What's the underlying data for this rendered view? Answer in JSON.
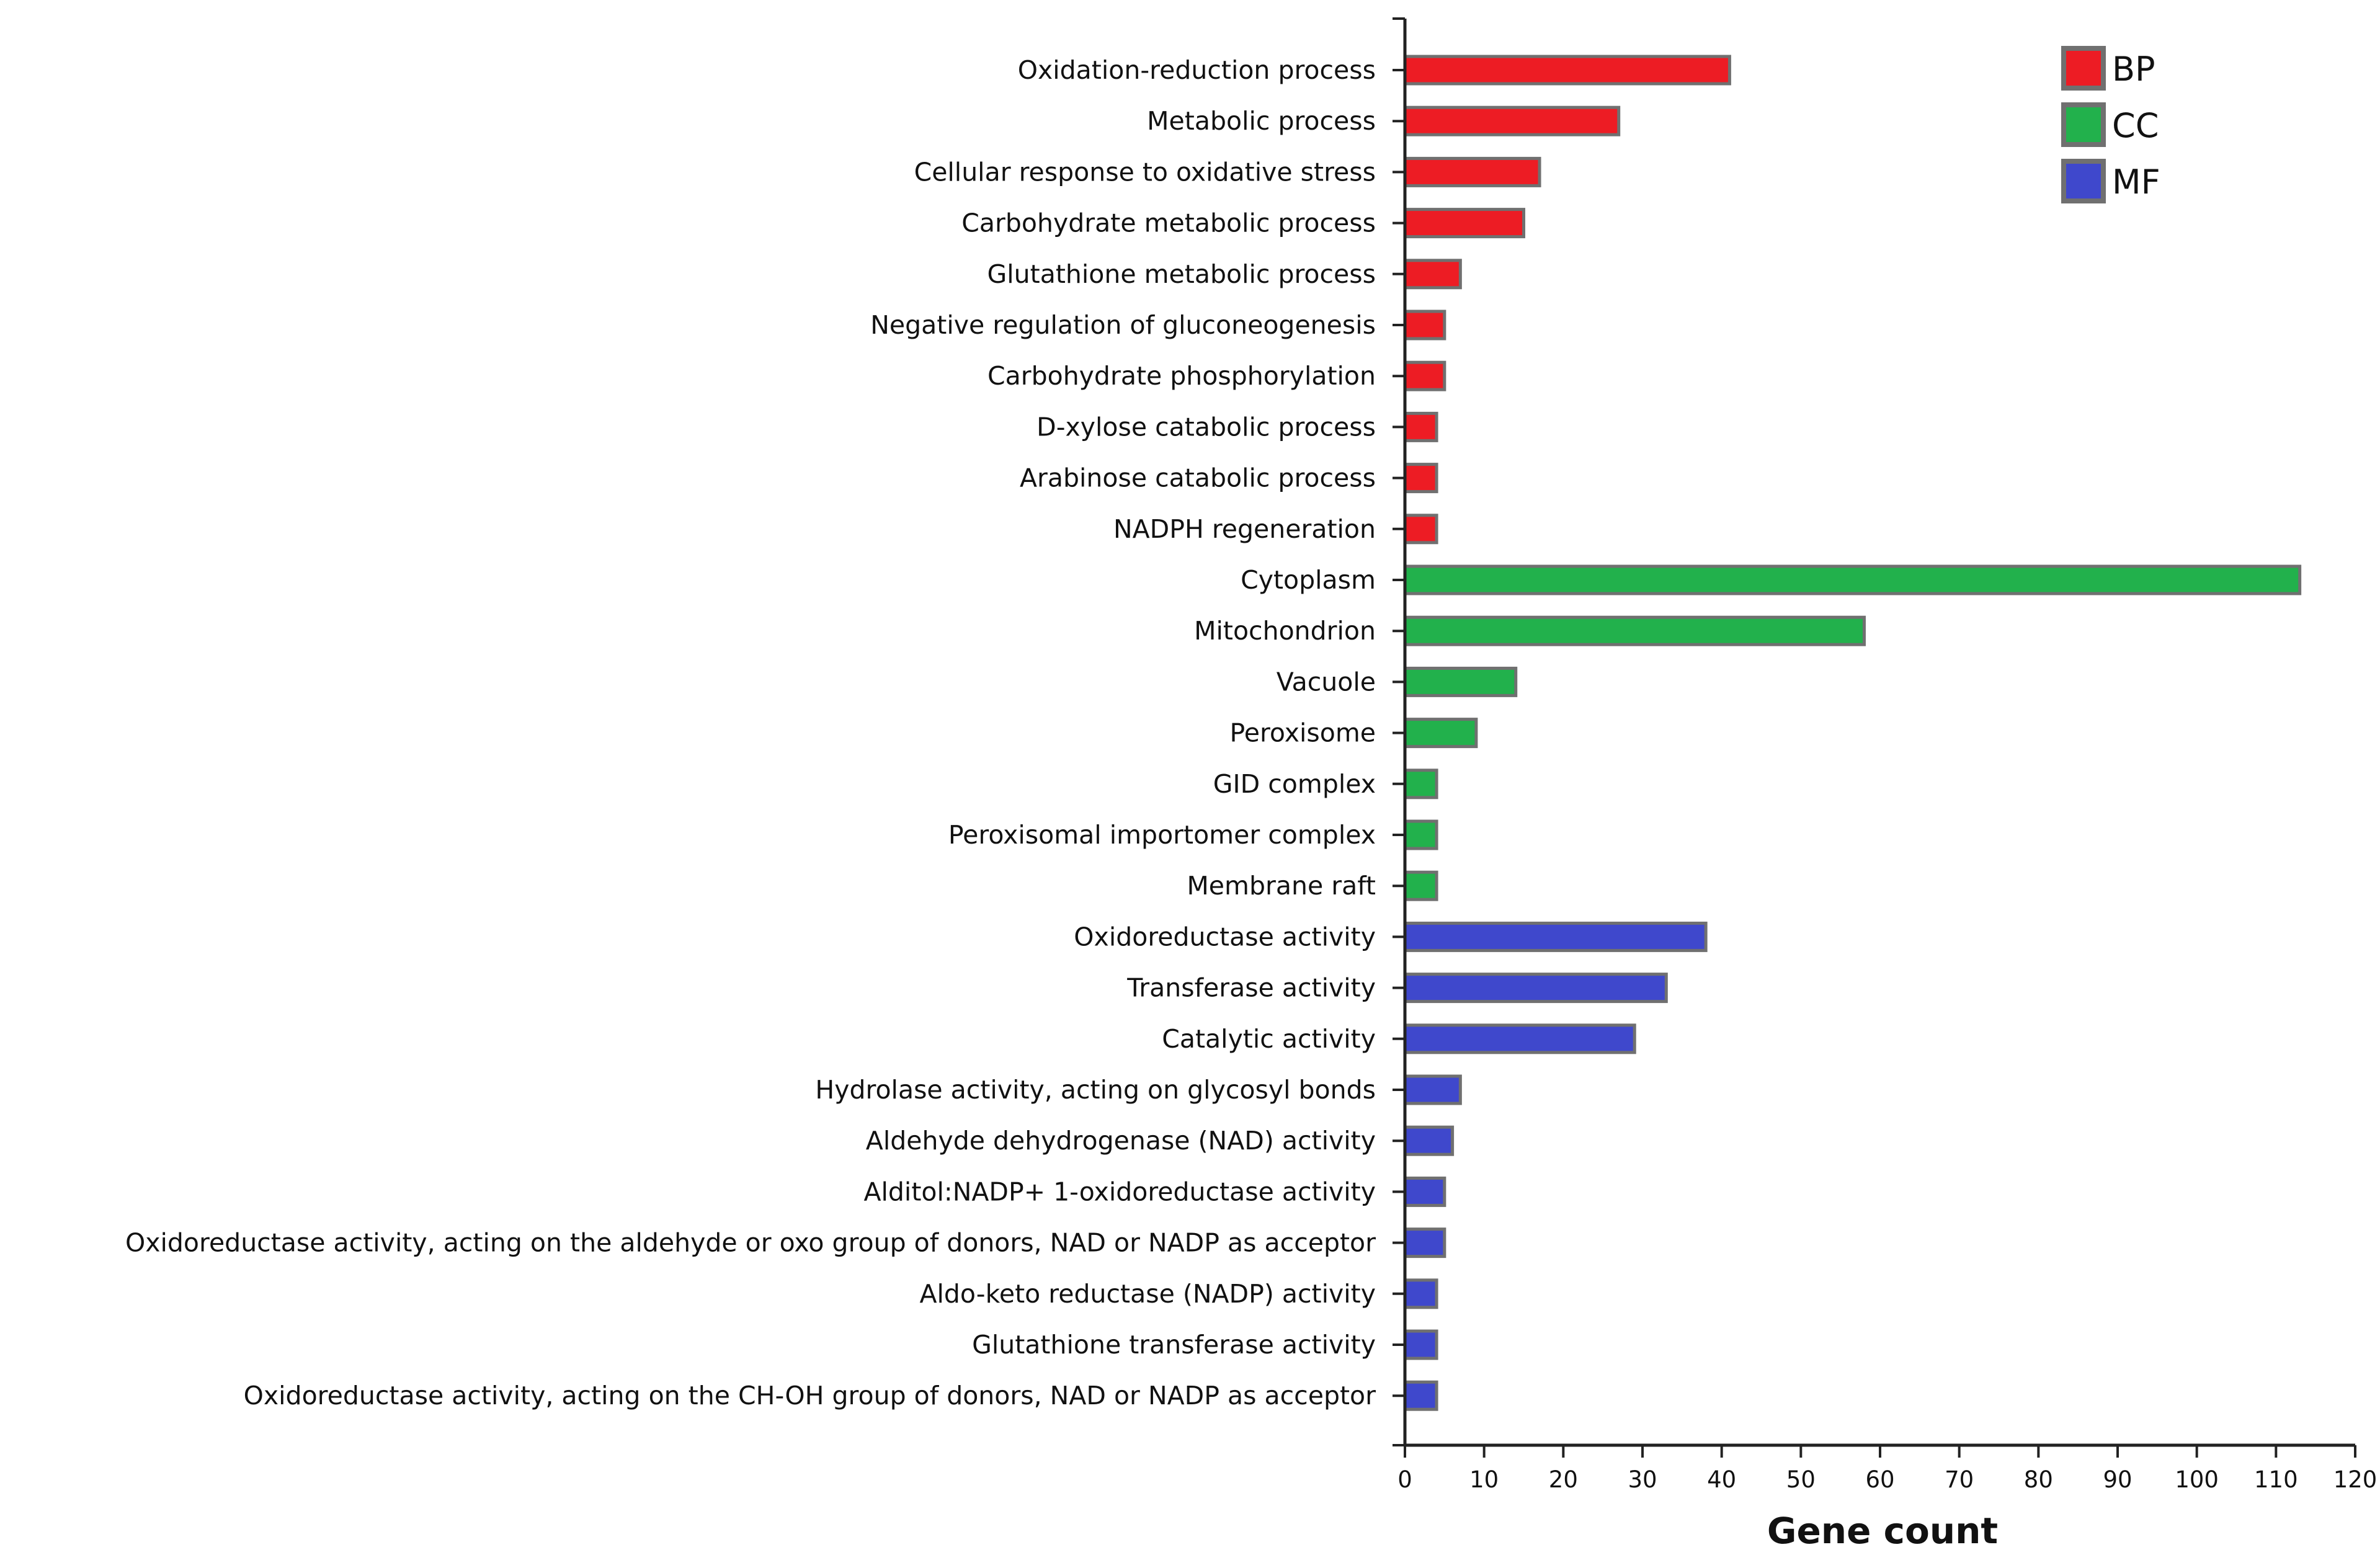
{
  "chart_data": {
    "type": "bar",
    "orientation": "horizontal",
    "xlabel": "Gene count",
    "ylabel": "",
    "title": "",
    "xlim": [
      0,
      120
    ],
    "x_ticks": [
      0,
      10,
      20,
      30,
      40,
      50,
      60,
      70,
      80,
      90,
      100,
      110,
      120
    ],
    "grid": false,
    "legend_position": "top-right",
    "categories": [
      "Oxidation-reduction process",
      "Metabolic process",
      "Cellular response to oxidative stress",
      "Carbohydrate metabolic process",
      "Glutathione metabolic process",
      "Negative regulation of gluconeogenesis",
      "Carbohydrate phosphorylation",
      "D-xylose catabolic process",
      "Arabinose catabolic process",
      "NADPH regeneration",
      "Cytoplasm",
      "Mitochondrion",
      "Vacuole",
      "Peroxisome",
      "GID complex",
      "Peroxisomal importomer complex",
      "Membrane raft",
      "Oxidoreductase activity",
      "Transferase activity",
      "Catalytic activity",
      "Hydrolase activity, acting on glycosyl bonds",
      "Aldehyde dehydrogenase (NAD) activity",
      "Alditol:NADP+ 1-oxidoreductase activity",
      "Oxidoreductase activity, acting on the aldehyde or oxo group of donors, NAD or NADP as acceptor",
      "Aldo-keto reductase (NADP) activity",
      "Glutathione transferase activity",
      "Oxidoreductase activity, acting on the CH-OH group of donors, NAD or NADP as acceptor"
    ],
    "values": [
      41,
      27,
      17,
      15,
      7,
      5,
      5,
      4,
      4,
      4,
      113,
      58,
      14,
      9,
      4,
      4,
      4,
      38,
      33,
      29,
      7,
      6,
      5,
      5,
      4,
      4,
      4
    ],
    "groups": [
      "BP",
      "BP",
      "BP",
      "BP",
      "BP",
      "BP",
      "BP",
      "BP",
      "BP",
      "BP",
      "CC",
      "CC",
      "CC",
      "CC",
      "CC",
      "CC",
      "CC",
      "MF",
      "MF",
      "MF",
      "MF",
      "MF",
      "MF",
      "MF",
      "MF",
      "MF",
      "MF"
    ],
    "series": [
      {
        "name": "BP",
        "color": "#ed1c24"
      },
      {
        "name": "CC",
        "color": "#22b14c"
      },
      {
        "name": "MF",
        "color": "#3f48cc"
      }
    ],
    "bar_edge_color": "#707070"
  }
}
